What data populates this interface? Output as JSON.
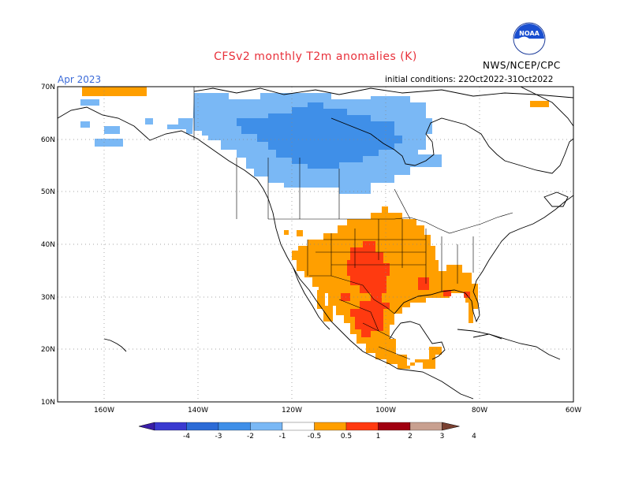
{
  "header": {
    "title": "CFSv2 monthly T2m anomalies (K)",
    "month": "Apr 2023",
    "agency": "NWS/NCEP/CPC",
    "initial_conditions": "initial conditions: 22Oct2022-31Oct2022",
    "logo_text": "NOAA"
  },
  "axes": {
    "lat_labels": [
      "70N",
      "60N",
      "50N",
      "40N",
      "30N",
      "20N",
      "10N"
    ],
    "lon_labels": [
      "160W",
      "140W",
      "120W",
      "100W",
      "80W",
      "60W"
    ]
  },
  "colorbar": {
    "labels": [
      "-4",
      "-3",
      "-2",
      "-1",
      "-0.5",
      "0.5",
      "1",
      "2",
      "3",
      "4"
    ],
    "colors": [
      "#3a1ea8",
      "#3a3ad0",
      "#2c6bd6",
      "#3f8fe8",
      "#7ab8f5",
      "#ffffff",
      "#ff9f00",
      "#ff3a10",
      "#a00010",
      "#c8a090",
      "#7a4030"
    ]
  },
  "anomaly_regions": {
    "cold_canada": "#7ab8f5",
    "cold_core": "#3f8fe8",
    "warm_southwest_mexico": "#ff9f00",
    "hot_core": "#ff3a10"
  }
}
